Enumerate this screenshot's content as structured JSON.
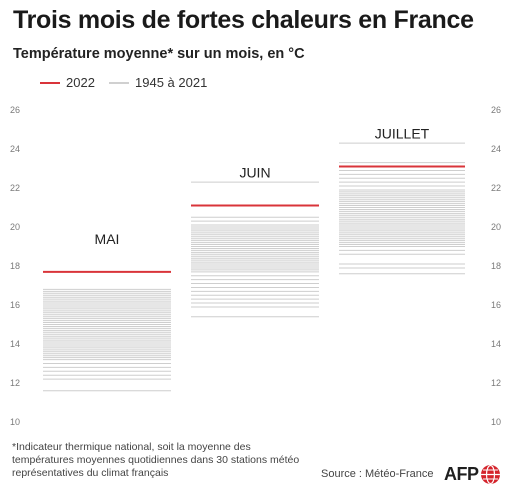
{
  "title": "Trois mois de fortes chaleurs en France",
  "subtitle": "Température moyenne* sur un mois, en °C",
  "legend": [
    {
      "label": "2022",
      "color": "#d9343a"
    },
    {
      "label": "1945 à 2021",
      "color": "#d0d0d0"
    }
  ],
  "footnote": "*Indicateur thermique national, soit la moyenne des températures moyennes quotidiennes dans 30 stations météo représentatives du climat français",
  "source": "Source : Météo-France",
  "logo": "AFP",
  "colors": {
    "highlight": "#d9343a",
    "history": "#cecece"
  },
  "chart_data": {
    "type": "strip",
    "ylim": [
      10,
      26
    ],
    "yticks": [
      10,
      12,
      14,
      16,
      18,
      20,
      22,
      24,
      26
    ],
    "groups": [
      {
        "name": "MAI",
        "highlight": 17.7,
        "history": [
          11.6,
          12.2,
          12.4,
          12.6,
          12.8,
          13.0,
          13.2,
          13.3,
          13.4,
          13.5,
          13.6,
          13.7,
          13.8,
          13.9,
          14.0,
          14.1,
          14.2,
          14.3,
          14.4,
          14.5,
          14.6,
          14.7,
          14.8,
          14.9,
          15.0,
          15.1,
          15.2,
          15.3,
          15.4,
          15.5,
          15.6,
          15.7,
          15.8,
          15.9,
          16.0,
          16.1,
          16.2,
          16.3,
          16.4,
          16.5,
          16.6,
          16.7,
          16.8
        ]
      },
      {
        "name": "JUIN",
        "highlight": 21.1,
        "history": [
          15.4,
          15.9,
          16.1,
          16.3,
          16.5,
          16.7,
          16.9,
          17.1,
          17.3,
          17.5,
          17.7,
          17.8,
          17.9,
          18.0,
          18.1,
          18.2,
          18.3,
          18.4,
          18.5,
          18.6,
          18.7,
          18.8,
          18.9,
          19.0,
          19.1,
          19.2,
          19.3,
          19.4,
          19.5,
          19.6,
          19.7,
          19.8,
          19.9,
          20.0,
          20.1,
          20.3,
          20.5,
          22.3
        ]
      },
      {
        "name": "JUILLET",
        "highlight": 23.1,
        "history": [
          17.6,
          17.9,
          18.1,
          18.6,
          18.8,
          19.0,
          19.1,
          19.2,
          19.3,
          19.4,
          19.5,
          19.6,
          19.7,
          19.8,
          19.9,
          20.0,
          20.1,
          20.2,
          20.3,
          20.4,
          20.5,
          20.6,
          20.7,
          20.8,
          20.9,
          21.0,
          21.1,
          21.2,
          21.3,
          21.4,
          21.5,
          21.6,
          21.7,
          21.8,
          21.9,
          22.1,
          22.3,
          22.5,
          22.7,
          22.9,
          23.3,
          24.3
        ]
      }
    ]
  }
}
